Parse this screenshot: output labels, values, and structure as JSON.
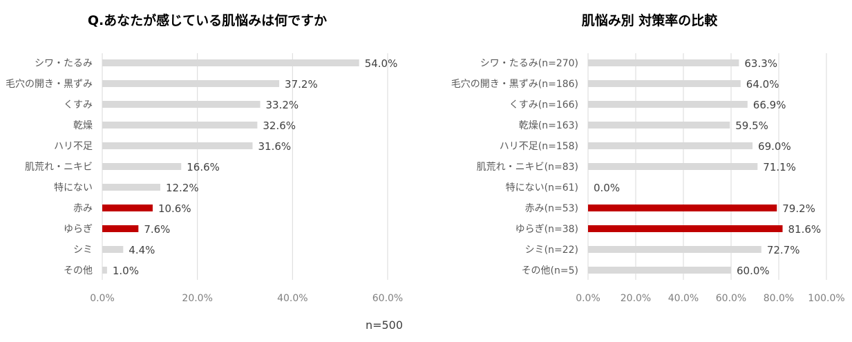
{
  "footnote": "n=500",
  "colors": {
    "default": "#d9d9d9",
    "highlight": "#c00000"
  },
  "chart_data": [
    {
      "type": "bar",
      "orientation": "horizontal",
      "title": "Q.あなたが感じている肌悩みは何ですか",
      "categories": [
        "シワ・たるみ",
        "毛穴の開き・黒ずみ",
        "くすみ",
        "乾燥",
        "ハリ不足",
        "肌荒れ・ニキビ",
        "特にない",
        "赤み",
        "ゆらぎ",
        "シミ",
        "その他"
      ],
      "values": [
        54.0,
        37.2,
        33.2,
        32.6,
        31.6,
        16.6,
        12.2,
        10.6,
        7.6,
        4.4,
        1.0
      ],
      "value_labels": [
        "54.0%",
        "37.2%",
        "33.2%",
        "32.6%",
        "31.6%",
        "16.6%",
        "12.2%",
        "10.6%",
        "7.6%",
        "4.4%",
        "1.0%"
      ],
      "highlight": [
        false,
        false,
        false,
        false,
        false,
        false,
        false,
        true,
        true,
        false,
        false
      ],
      "xlim": [
        0,
        60
      ],
      "xticks": [
        "0.0%",
        "20.0%",
        "40.0%",
        "60.0%"
      ],
      "grid": true
    },
    {
      "type": "bar",
      "orientation": "horizontal",
      "title": "肌悩み別 対策率の比較",
      "categories": [
        "シワ・たるみ(n=270)",
        "毛穴の開き・黒ずみ(n=186)",
        "くすみ(n=166)",
        "乾燥(n=163)",
        "ハリ不足(n=158)",
        "肌荒れ・ニキビ(n=83)",
        "特にない(n=61)",
        "赤み(n=53)",
        "ゆらぎ(n=38)",
        "シミ(n=22)",
        "その他(n=5)"
      ],
      "values": [
        63.3,
        64.0,
        66.9,
        59.5,
        69.0,
        71.1,
        0.0,
        79.2,
        81.6,
        72.7,
        60.0
      ],
      "value_labels": [
        "63.3%",
        "64.0%",
        "66.9%",
        "59.5%",
        "69.0%",
        "71.1%",
        "0.0%",
        "79.2%",
        "81.6%",
        "72.7%",
        "60.0%"
      ],
      "highlight": [
        false,
        false,
        false,
        false,
        false,
        false,
        false,
        true,
        true,
        false,
        false
      ],
      "xlim": [
        0,
        100
      ],
      "xticks": [
        "0.0%",
        "20.0%",
        "40.0%",
        "60.0%",
        "80.0%",
        "100.0%"
      ],
      "grid": true
    }
  ]
}
